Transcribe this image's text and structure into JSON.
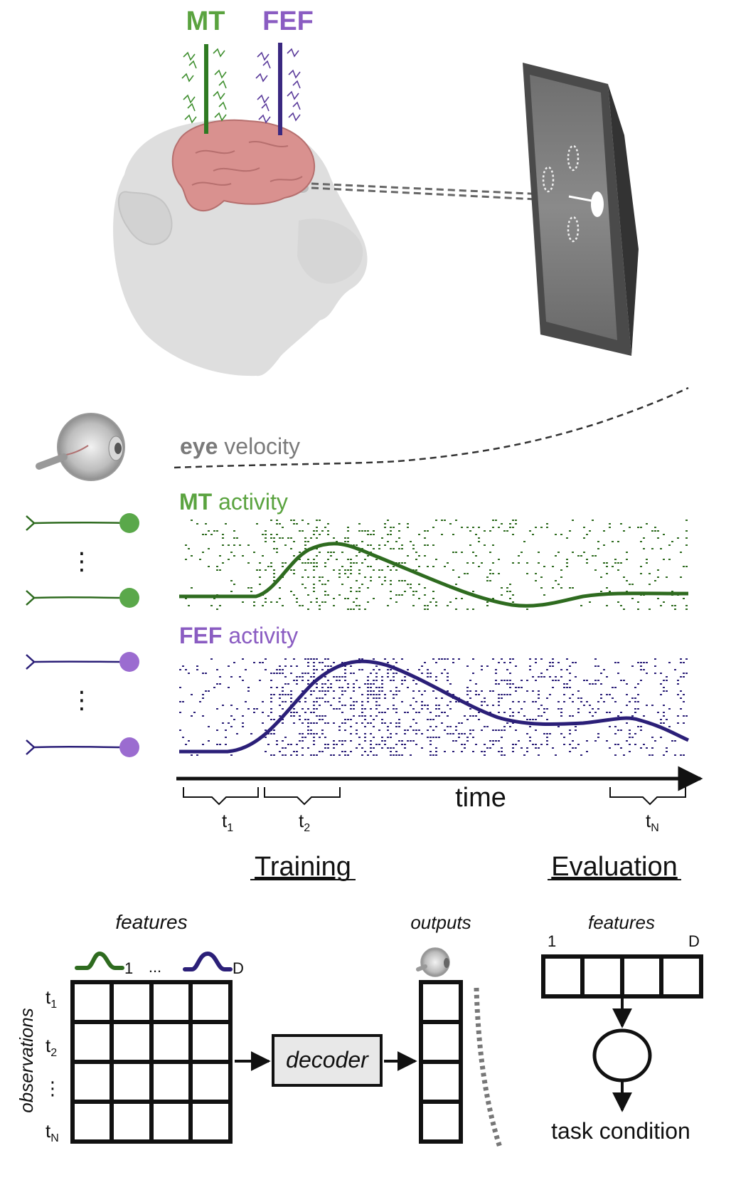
{
  "colors": {
    "mt": "#2e6b1f",
    "mt_label": "#5aa33f",
    "mt_body": "#5aa84a",
    "fef": "#2b1f78",
    "fef_label": "#8a5cc2",
    "fef_body": "#9b6cd0",
    "gray_label": "#7a7a7a",
    "brain": "#d9918f",
    "head": "#dcdcdc",
    "monitor": "#5b5b5b",
    "black": "#111111"
  },
  "recording": {
    "mt_label": "MT",
    "fef_label": "FEF"
  },
  "signals": {
    "eye_label_bold": "eye",
    "eye_label_rest": " velocity",
    "mt_label_bold": "MT",
    "mt_label_rest": " activity",
    "fef_label_bold": "FEF",
    "fef_label_rest": " activity",
    "vdots": "⋮"
  },
  "timeline": {
    "time_label": "time",
    "t1": "t",
    "t1_sub": "1",
    "t2": "t",
    "t2_sub": "2",
    "tN": "t",
    "tN_sub": "N"
  },
  "training": {
    "heading": "Training",
    "features_label": "features",
    "feature_first": "1",
    "feature_dots": "...",
    "feature_last": "D",
    "observations_label": "observations",
    "row_t1": "t",
    "row_t1_sub": "1",
    "row_t2": "t",
    "row_t2_sub": "2",
    "row_dots": "⋮",
    "row_tN": "t",
    "row_tN_sub": "N",
    "decoder_label": "decoder",
    "outputs_label": "outputs"
  },
  "evaluation": {
    "heading": "Evaluation",
    "features_label": "features",
    "feature_first": "1",
    "feature_last": "D",
    "result_label": "task condition"
  }
}
